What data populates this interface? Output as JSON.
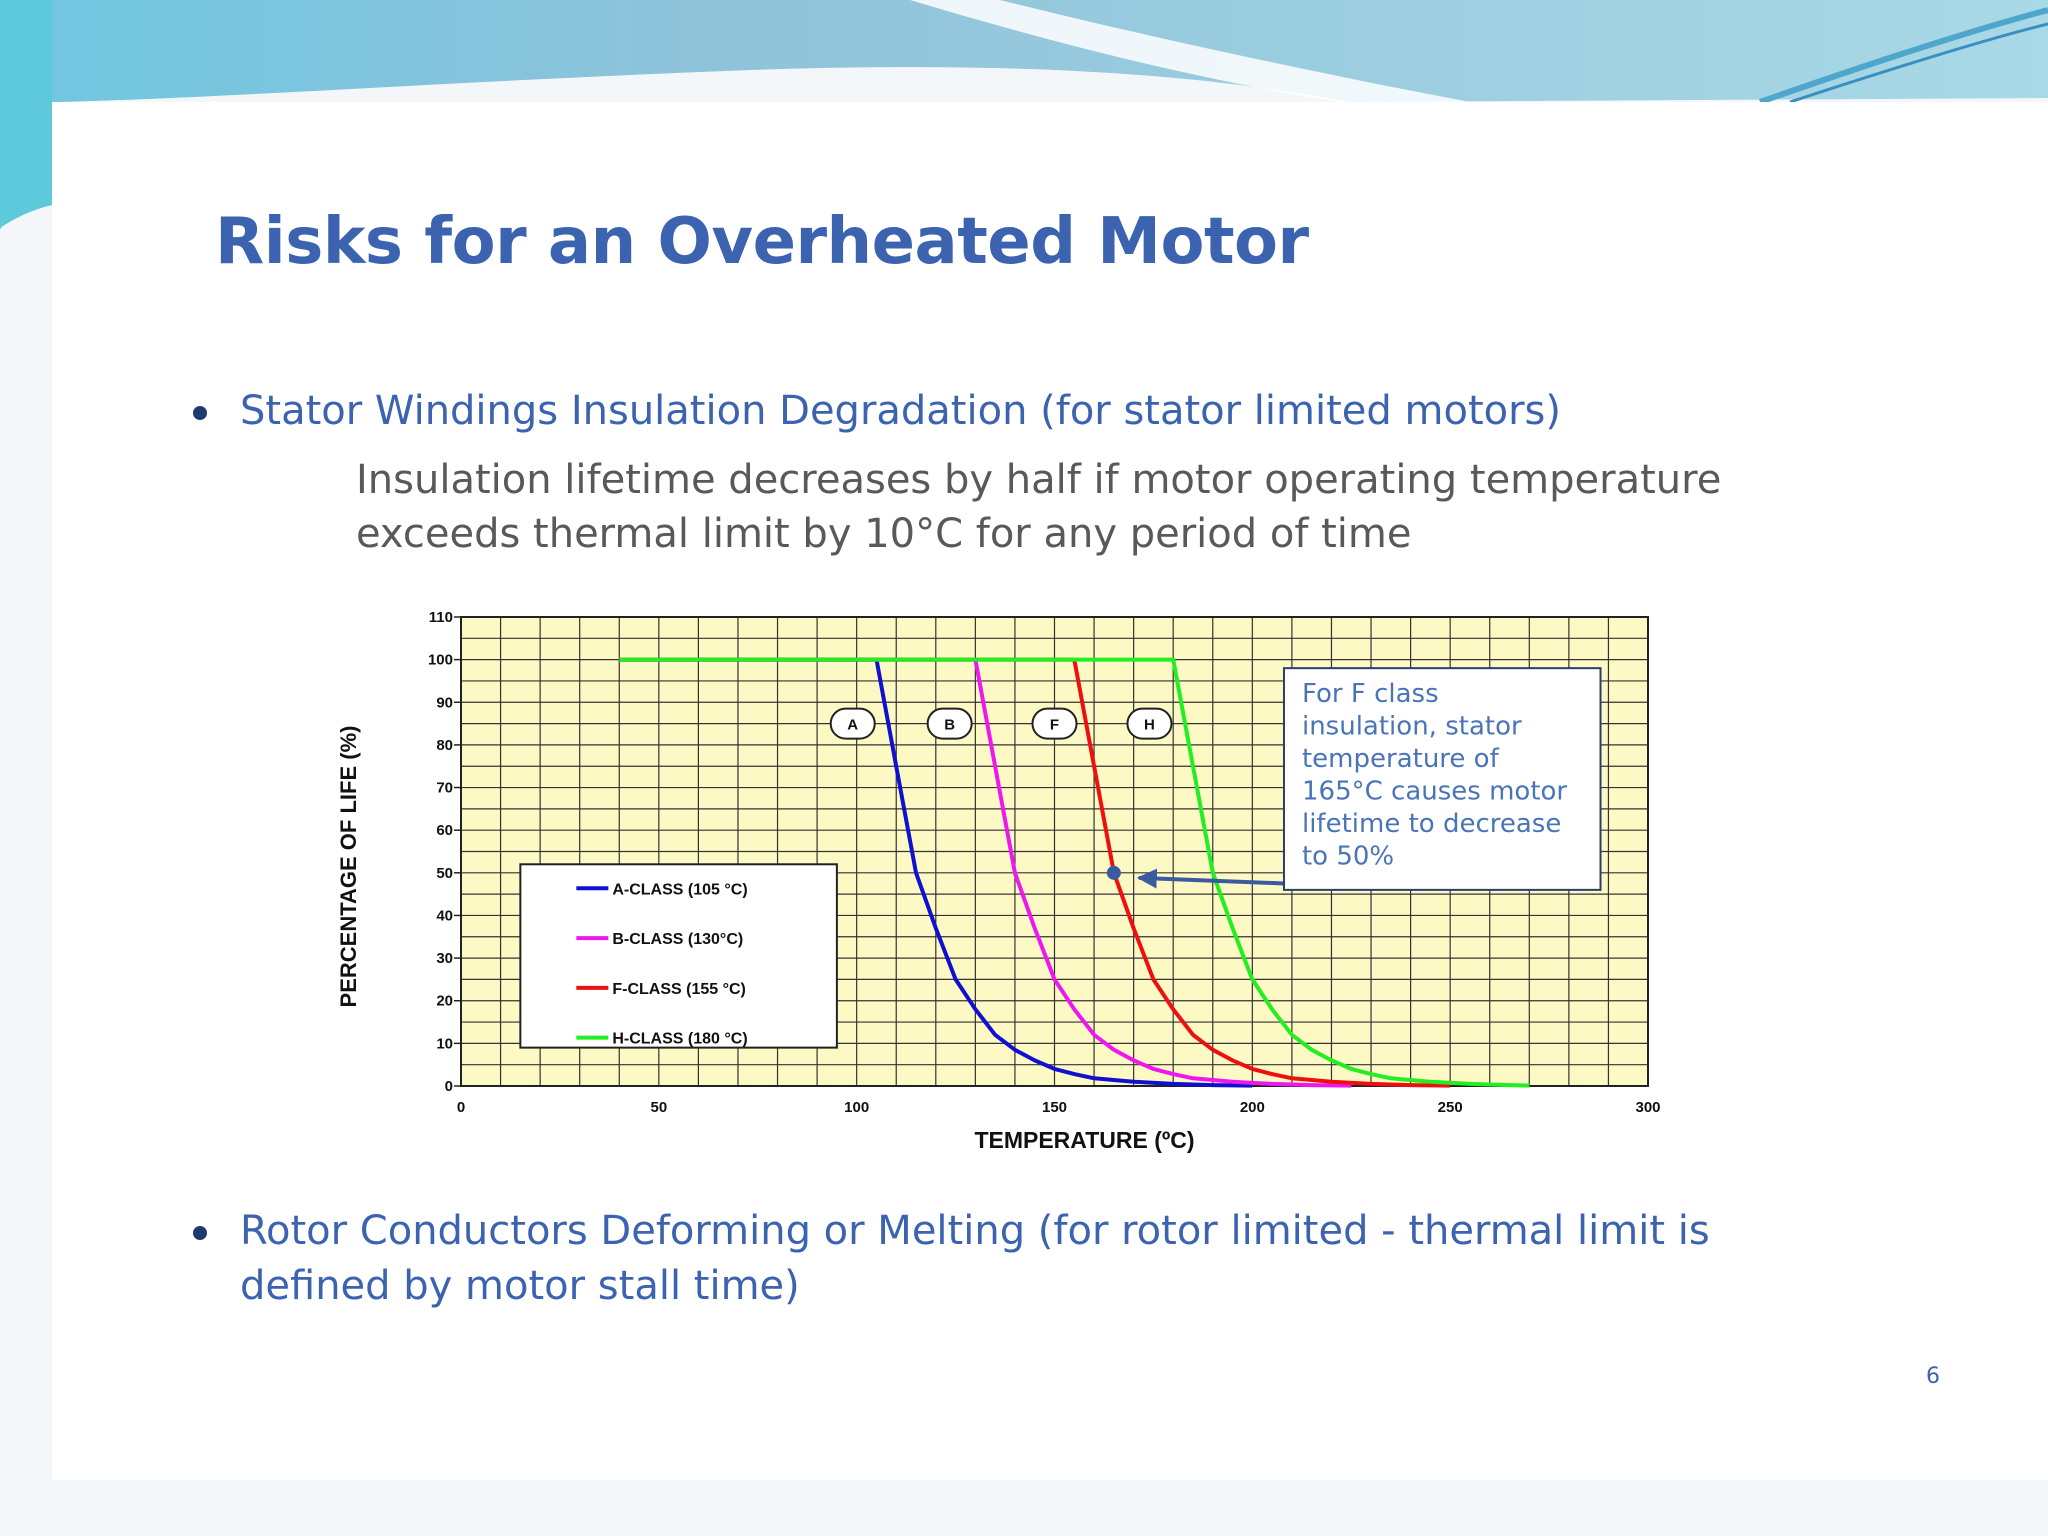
{
  "slide": {
    "title": "Risks for an Overheated Motor",
    "bullets": [
      {
        "text": "Stator Windings Insulation Degradation (for stator limited motors)",
        "detail_lines": [
          "Insulation lifetime decreases by half if motor operating temperature",
          "exceeds thermal limit by 10°C for any period of time"
        ]
      },
      {
        "text": "Rotor Conductors Deforming or Melting (for rotor limited - thermal limit is defined by motor stall time)"
      }
    ],
    "page_number": "6"
  },
  "chart_data": {
    "type": "line",
    "xlabel": "TEMPERATURE (ºC)",
    "ylabel": "PERCENTAGE OF LIFE (%)",
    "xlim": [
      0,
      300
    ],
    "ylim": [
      0,
      110
    ],
    "x_ticks": [
      0,
      50,
      100,
      150,
      200,
      250,
      300
    ],
    "y_ticks": [
      0,
      10,
      20,
      30,
      40,
      50,
      60,
      70,
      80,
      90,
      100,
      110
    ],
    "grid": true,
    "background_color": "#fdf9c4",
    "series": [
      {
        "name": "A-CLASS (105 °C)",
        "color": "#1010d0",
        "marker_label": "A",
        "marker_label_pos": [
          99,
          85
        ],
        "points": [
          [
            40,
            100
          ],
          [
            105,
            100
          ],
          [
            110,
            75
          ],
          [
            115,
            50
          ],
          [
            120,
            37
          ],
          [
            125,
            25
          ],
          [
            130,
            18
          ],
          [
            135,
            12
          ],
          [
            140,
            8.5
          ],
          [
            145,
            6
          ],
          [
            150,
            4
          ],
          [
            155,
            2.8
          ],
          [
            160,
            1.8
          ],
          [
            170,
            1
          ],
          [
            180,
            0.5
          ],
          [
            190,
            0.2
          ],
          [
            200,
            0.1
          ]
        ]
      },
      {
        "name": "B-CLASS (130°C)",
        "color": "#ee18ee",
        "marker_label": "B",
        "marker_label_pos": [
          123.5,
          85
        ],
        "points": [
          [
            40,
            100
          ],
          [
            130,
            100
          ],
          [
            135,
            75
          ],
          [
            140,
            50
          ],
          [
            145,
            37
          ],
          [
            150,
            25
          ],
          [
            155,
            18
          ],
          [
            160,
            12
          ],
          [
            165,
            8.5
          ],
          [
            170,
            6
          ],
          [
            175,
            4
          ],
          [
            180,
            2.8
          ],
          [
            185,
            1.8
          ],
          [
            195,
            1
          ],
          [
            205,
            0.5
          ],
          [
            215,
            0.2
          ],
          [
            225,
            0.1
          ]
        ]
      },
      {
        "name": "F-CLASS (155 °C)",
        "color": "#ee1010",
        "marker_label": "F",
        "marker_label_pos": [
          150,
          85
        ],
        "points": [
          [
            40,
            100
          ],
          [
            155,
            100
          ],
          [
            160,
            75
          ],
          [
            165,
            50
          ],
          [
            170,
            37
          ],
          [
            175,
            25
          ],
          [
            180,
            18
          ],
          [
            185,
            12
          ],
          [
            190,
            8.5
          ],
          [
            195,
            6
          ],
          [
            200,
            4
          ],
          [
            205,
            2.8
          ],
          [
            210,
            1.8
          ],
          [
            220,
            1
          ],
          [
            230,
            0.5
          ],
          [
            240,
            0.2
          ],
          [
            250,
            0.1
          ]
        ]
      },
      {
        "name": "H-CLASS (180 °C)",
        "color": "#22ee22",
        "marker_label": "H",
        "marker_label_pos": [
          174,
          85
        ],
        "points": [
          [
            40,
            100
          ],
          [
            180,
            100
          ],
          [
            185,
            75
          ],
          [
            190,
            50
          ],
          [
            195,
            37
          ],
          [
            200,
            25
          ],
          [
            205,
            18
          ],
          [
            210,
            12
          ],
          [
            215,
            8.5
          ],
          [
            220,
            6
          ],
          [
            225,
            4
          ],
          [
            230,
            2.8
          ],
          [
            235,
            1.8
          ],
          [
            245,
            1
          ],
          [
            255,
            0.5
          ],
          [
            265,
            0.2
          ],
          [
            270,
            0.1
          ]
        ]
      }
    ],
    "highlight_point": {
      "x": 165,
      "y": 50,
      "color": "#3b5aa0"
    },
    "annotation": {
      "lines": [
        "For F class",
        "insulation, stator",
        "temperature of",
        "165°C causes motor",
        "lifetime to decrease",
        "to 50%"
      ],
      "color": "#4a74b8"
    },
    "legend_position": "lower-left"
  }
}
